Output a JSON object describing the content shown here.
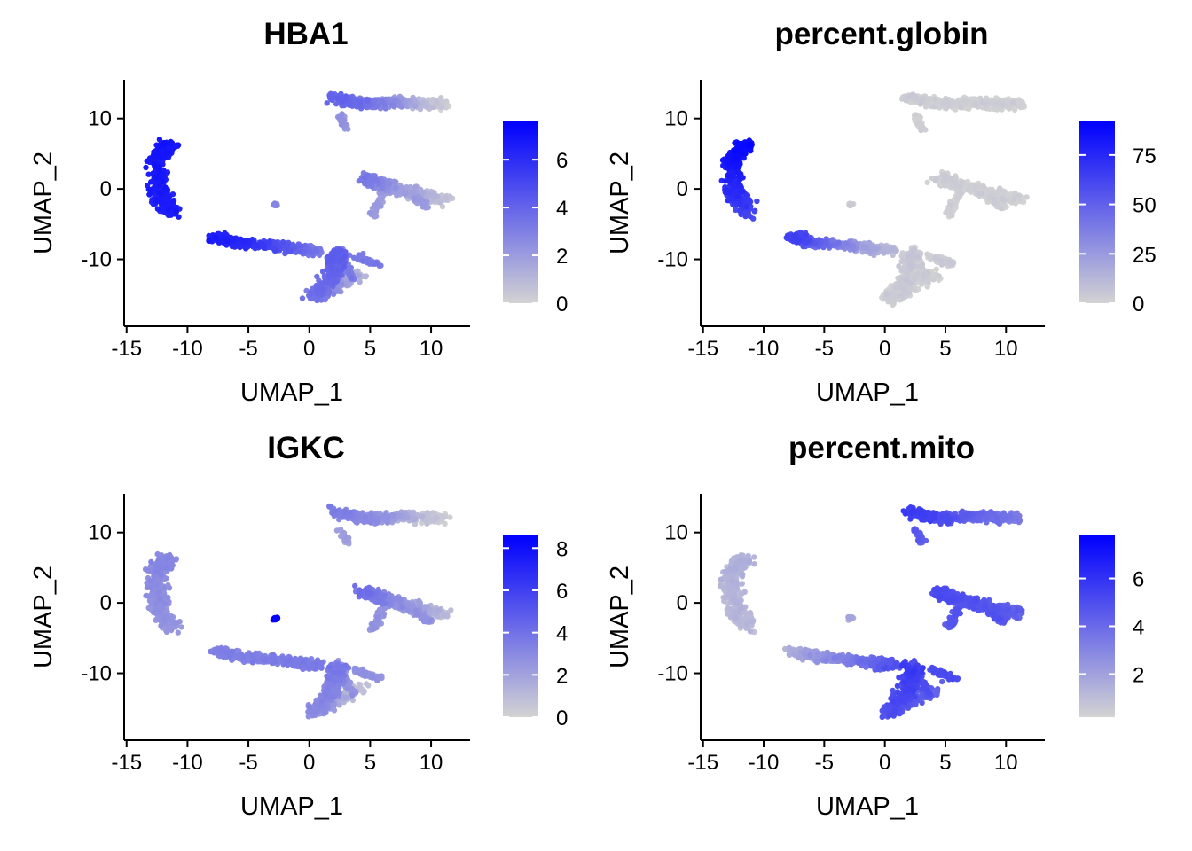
{
  "chart_data": [
    {
      "type": "scatter",
      "title": "HBA1",
      "xlabel": "UMAP_1",
      "ylabel": "UMAP_2",
      "xlim": [
        -15.2,
        13.2
      ],
      "ylim": [
        -19.5,
        15.5
      ],
      "xticks": [
        -15,
        -10,
        -5,
        0,
        5,
        10
      ],
      "yticks": [
        -10,
        0,
        10
      ],
      "grid": false,
      "legend": {
        "position": "right",
        "type": "colorbar",
        "ticks": [
          0,
          2,
          4,
          6
        ],
        "range": [
          0,
          7.6
        ],
        "colors": [
          "#d3d3d3",
          "#0000ff"
        ]
      },
      "clusters": [
        {
          "name": "top-cluster",
          "values": [
            4.0,
            3.6,
            3.0,
            2.0,
            0.6,
            0.2
          ]
        },
        {
          "name": "left-cluster",
          "values": [
            6.7,
            6.6,
            6.5,
            6.4
          ]
        },
        {
          "name": "right-cluster",
          "values": [
            3.2,
            2.4,
            1.4,
            0.5
          ]
        },
        {
          "name": "mid-band",
          "values": [
            6.4,
            6.0,
            4.4,
            3.0
          ]
        },
        {
          "name": "bottom-cluster",
          "values": [
            4.2,
            3.8,
            3.4,
            0.8
          ]
        },
        {
          "name": "small-blob",
          "values": [
            2.6
          ]
        }
      ]
    },
    {
      "type": "scatter",
      "title": "percent.globin",
      "xlabel": "UMAP_1",
      "ylabel": "UMAP_2",
      "xlim": [
        -15.2,
        13.2
      ],
      "ylim": [
        -19.5,
        15.5
      ],
      "xticks": [
        -15,
        -10,
        -5,
        0,
        5,
        10
      ],
      "yticks": [
        -10,
        0,
        10
      ],
      "grid": false,
      "legend": {
        "position": "right",
        "type": "colorbar",
        "ticks": [
          0,
          25,
          50,
          75
        ],
        "range": [
          0,
          92
        ],
        "colors": [
          "#d3d3d3",
          "#0000ff"
        ]
      },
      "clusters": [
        {
          "name": "top-cluster",
          "values": [
            1,
            1,
            0,
            0,
            0,
            0
          ]
        },
        {
          "name": "left-cluster",
          "values": [
            86,
            82,
            72,
            60
          ]
        },
        {
          "name": "right-cluster",
          "values": [
            1,
            0,
            0,
            0
          ]
        },
        {
          "name": "mid-band",
          "values": [
            64,
            48,
            22,
            8
          ]
        },
        {
          "name": "bottom-cluster",
          "values": [
            4,
            2,
            1,
            0
          ]
        },
        {
          "name": "small-blob",
          "values": [
            2
          ]
        }
      ]
    },
    {
      "type": "scatter",
      "title": "IGKC",
      "xlabel": "UMAP_1",
      "ylabel": "UMAP_2",
      "xlim": [
        -15.2,
        13.2
      ],
      "ylim": [
        -19.5,
        15.5
      ],
      "xticks": [
        -15,
        -10,
        -5,
        0,
        5,
        10
      ],
      "yticks": [
        -10,
        0,
        10
      ],
      "grid": false,
      "legend": {
        "position": "right",
        "type": "colorbar",
        "ticks": [
          0,
          2,
          4,
          6,
          8
        ],
        "range": [
          0,
          8.6
        ],
        "colors": [
          "#d3d3d3",
          "#0000ff"
        ]
      },
      "clusters": [
        {
          "name": "top-cluster",
          "values": [
            3.4,
            3.0,
            2.6,
            1.8,
            0.6,
            0.2
          ]
        },
        {
          "name": "left-cluster",
          "values": [
            3.0,
            2.8,
            2.6,
            2.4
          ]
        },
        {
          "name": "right-cluster",
          "values": [
            4.0,
            3.2,
            2.0,
            0.8
          ]
        },
        {
          "name": "mid-band",
          "values": [
            3.2,
            3.2,
            3.4,
            3.4
          ]
        },
        {
          "name": "bottom-cluster",
          "values": [
            3.6,
            3.0,
            2.8,
            0.6
          ]
        },
        {
          "name": "small-blob",
          "values": [
            8.4
          ]
        }
      ]
    },
    {
      "type": "scatter",
      "title": "percent.mito",
      "xlabel": "UMAP_1",
      "ylabel": "UMAP_2",
      "xlim": [
        -15.2,
        13.2
      ],
      "ylim": [
        -19.5,
        15.5
      ],
      "xticks": [
        -15,
        -10,
        -5,
        0,
        5,
        10
      ],
      "yticks": [
        -10,
        0,
        10
      ],
      "grid": false,
      "legend": {
        "position": "right",
        "type": "colorbar",
        "ticks": [
          2,
          4,
          6
        ],
        "range": [
          0.2,
          7.8
        ],
        "colors": [
          "#d3d3d3",
          "#0000ff"
        ]
      },
      "clusters": [
        {
          "name": "top-cluster",
          "values": [
            5.6,
            5.2,
            4.6,
            4.0,
            3.6,
            3.2
          ]
        },
        {
          "name": "left-cluster",
          "values": [
            1.4,
            1.2,
            1.1,
            1.0
          ]
        },
        {
          "name": "right-cluster",
          "values": [
            5.0,
            4.8,
            4.6,
            4.2
          ]
        },
        {
          "name": "mid-band",
          "values": [
            1.4,
            2.2,
            3.4,
            4.8
          ]
        },
        {
          "name": "bottom-cluster",
          "values": [
            5.6,
            5.2,
            4.8,
            4.2
          ]
        },
        {
          "name": "small-blob",
          "values": [
            1.6
          ]
        }
      ]
    }
  ]
}
